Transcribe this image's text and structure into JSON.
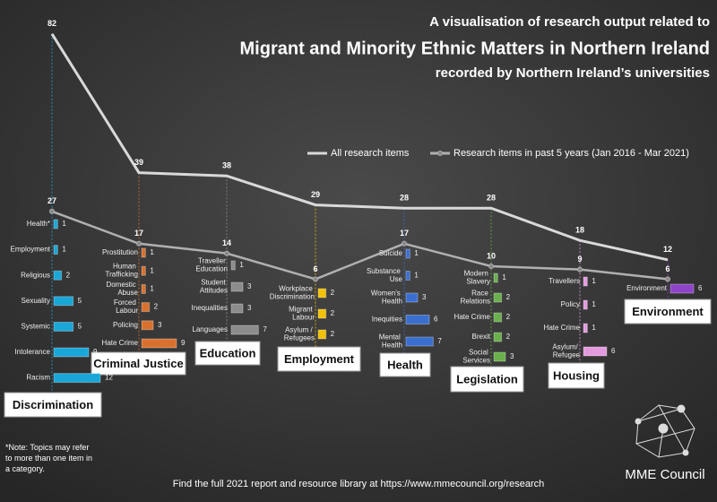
{
  "title_lines": [
    "A visualisation of research output related to",
    "Migrant and Minority Ethnic Matters in Northern Ireland",
    "recorded by Northern Ireland’s universities"
  ],
  "note": "*Note: Topics may refer to more than one item in a category.",
  "footer": "Find the full 2021 report and resource library at https://www.mmecouncil.org/research",
  "logo_text": "MME Council",
  "chart_data": [
    {
      "type": "line",
      "categories": [
        "Discrimination",
        "Criminal Justice",
        "Education",
        "Employment",
        "Health",
        "Legislation",
        "Housing",
        "Environment"
      ],
      "series": [
        {
          "name": "All research items",
          "color": "#d9d9d9",
          "values": [
            82,
            39,
            38,
            29,
            28,
            28,
            18,
            12
          ]
        },
        {
          "name": "Research items in past 5 years (Jan 2016 - Mar 2021)",
          "color": "#b0b0b0",
          "values": [
            27,
            17,
            14,
            6,
            17,
            10,
            9,
            6
          ]
        }
      ],
      "ylim": [
        0,
        90
      ]
    },
    {
      "type": "bar",
      "orientation": "horizontal",
      "color": "#1aa7d8",
      "xlim": [
        0,
        12
      ],
      "categories": [
        "Health*",
        "Employment",
        "Religious",
        "Sexuality",
        "Systemic",
        "Intolerance",
        "Racism"
      ],
      "values": [
        1,
        1,
        2,
        5,
        5,
        9,
        12
      ]
    },
    {
      "type": "bar",
      "orientation": "horizontal",
      "color": "#d9712e",
      "xlim": [
        0,
        12
      ],
      "categories": [
        "Prostitution",
        "Human Trafficking",
        "Domestic Abuse",
        "Forced Labour",
        "Policing",
        "Hate Crime"
      ],
      "values": [
        1,
        1,
        1,
        2,
        3,
        9
      ]
    },
    {
      "type": "bar",
      "orientation": "horizontal",
      "color": "#8c8c8c",
      "xlim": [
        0,
        12
      ],
      "categories": [
        "Traveller Education",
        "Student Attitudes",
        "Inequalities",
        "Languages"
      ],
      "values": [
        1,
        3,
        3,
        7
      ]
    },
    {
      "type": "bar",
      "orientation": "horizontal",
      "color": "#f2c200",
      "xlim": [
        0,
        12
      ],
      "categories": [
        "Workplace Discrimination",
        "Migrant Labour",
        "Asylum / Refugees"
      ],
      "values": [
        2,
        2,
        2
      ]
    },
    {
      "type": "bar",
      "orientation": "horizontal",
      "color": "#3a6fd0",
      "xlim": [
        0,
        12
      ],
      "categories": [
        "Suicide",
        "Substance Use",
        "Women's Health",
        "Inequities",
        "Mental Health"
      ],
      "values": [
        1,
        1,
        3,
        6,
        7
      ]
    },
    {
      "type": "bar",
      "orientation": "horizontal",
      "color": "#6ab04c",
      "xlim": [
        0,
        12
      ],
      "categories": [
        "Modern Slavery",
        "Race Relations",
        "Hate Crime",
        "Brexit",
        "Social Services"
      ],
      "values": [
        1,
        2,
        2,
        2,
        3
      ]
    },
    {
      "type": "bar",
      "orientation": "horizontal",
      "color": "#e39be0",
      "xlim": [
        0,
        12
      ],
      "categories": [
        "Travellers",
        "Policy",
        "Hate Crime",
        "Asylum/ Refugee"
      ],
      "values": [
        1,
        1,
        1,
        6
      ]
    },
    {
      "type": "bar",
      "orientation": "horizontal",
      "color": "#8e44c8",
      "xlim": [
        0,
        12
      ],
      "categories": [
        "Environment"
      ],
      "values": [
        6
      ]
    }
  ]
}
